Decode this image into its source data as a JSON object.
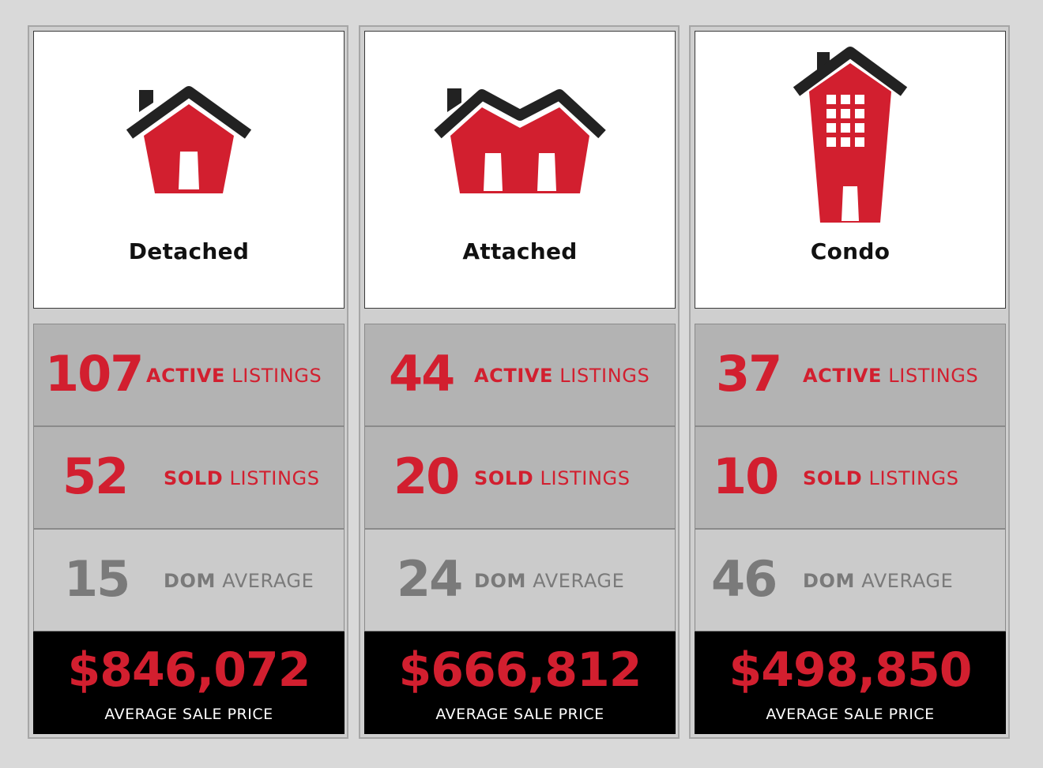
{
  "accent_color": "#d21f2f",
  "columns": [
    {
      "title": "Detached",
      "icon": "detached-house-icon",
      "active": {
        "value": "107",
        "label_bold": "ACTIVE",
        "label": "LISTINGS"
      },
      "sold": {
        "value": "52",
        "label_bold": "SOLD",
        "label": "LISTINGS"
      },
      "dom": {
        "value": "15",
        "label_bold": "DOM",
        "label": "AVERAGE"
      },
      "price": {
        "value": "$846,072",
        "label": "AVERAGE SALE PRICE"
      }
    },
    {
      "title": "Attached",
      "icon": "attached-house-icon",
      "active": {
        "value": "44",
        "label_bold": "ACTIVE",
        "label": "LISTINGS"
      },
      "sold": {
        "value": "20",
        "label_bold": "SOLD",
        "label": "LISTINGS"
      },
      "dom": {
        "value": "24",
        "label_bold": "DOM",
        "label": "AVERAGE"
      },
      "price": {
        "value": "$666,812",
        "label": "AVERAGE SALE PRICE"
      }
    },
    {
      "title": "Condo",
      "icon": "condo-building-icon",
      "active": {
        "value": "37",
        "label_bold": "ACTIVE",
        "label": "LISTINGS"
      },
      "sold": {
        "value": "10",
        "label_bold": "SOLD",
        "label": "LISTINGS"
      },
      "dom": {
        "value": "46",
        "label_bold": "DOM",
        "label": "AVERAGE"
      },
      "price": {
        "value": "$498,850",
        "label": "AVERAGE SALE PRICE"
      }
    }
  ]
}
